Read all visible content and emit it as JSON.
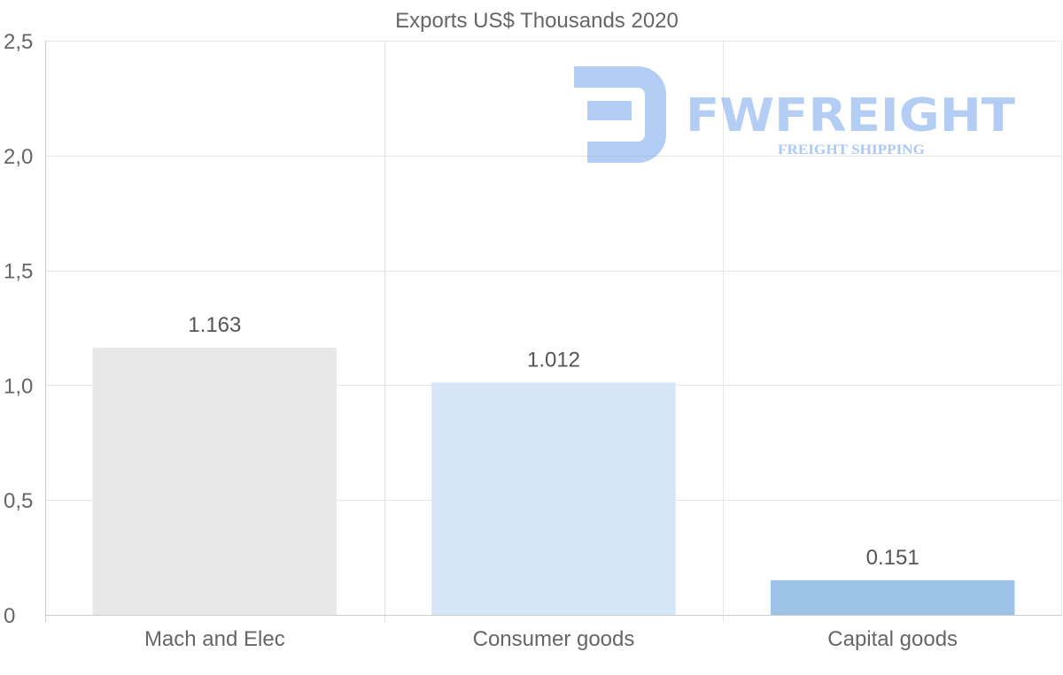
{
  "chart_data": {
    "type": "bar",
    "title": "Exports US$ Thousands 2020",
    "categories": [
      "Mach and Elec",
      "Consumer goods",
      "Capital goods"
    ],
    "values": [
      1.163,
      1.012,
      0.151
    ],
    "data_labels": [
      "1.163",
      "1.012",
      "0.151"
    ],
    "bar_colors": [
      "#e8e8e8",
      "#d6e6f8",
      "#9dc3e8"
    ],
    "yticks": [
      0,
      0.5,
      1.0,
      1.5,
      2.0,
      2.5
    ],
    "ytick_labels": [
      "0",
      "0,5",
      "1,0",
      "1,5",
      "2,0",
      "2,5"
    ],
    "ylim": [
      0,
      2.5
    ],
    "xlabel": "",
    "ylabel": "",
    "grid": true
  },
  "watermark": {
    "brand": "FWFREIGHT",
    "tagline": "FREIGHT SHIPPING",
    "color": "#6a9bea"
  }
}
